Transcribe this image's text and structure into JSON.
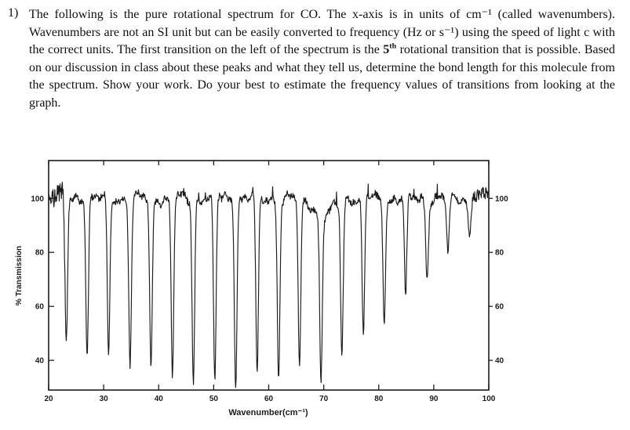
{
  "problem": {
    "number": "1)",
    "text_before": "The following is the pure rotational spectrum for CO.  The x-axis is in units of cm⁻¹ (called wavenumbers).  Wavenumbers are not an SI unit but can be easily converted to frequency (Hz or s⁻¹) using the speed of light c with the correct units.  The first transition on the left of the spectrum is the ",
    "bold_base": "5",
    "bold_sup": "th",
    "text_after": " rotational transition that is possible. Based on our discussion in class about these peaks and what they tell us, determine the bond length for this molecule from the spectrum.  Show your work. Do your best to estimate the frequency values of transitions from looking at the graph."
  },
  "chart_data": {
    "type": "line",
    "title": "",
    "xlabel": "Wavenumber(cm⁻¹)",
    "ylabel": "% Transmission",
    "xlim": [
      20,
      100
    ],
    "ylim_visible": [
      29,
      114
    ],
    "x_ticks": [
      20,
      30,
      40,
      50,
      60,
      70,
      80,
      90,
      100
    ],
    "y_ticks": [
      40,
      60,
      80,
      100
    ],
    "baseline_transmission": 100,
    "line_color": "#1c1c1c",
    "broad_feature": {
      "center": 70,
      "depth": 7,
      "width": 2.2
    },
    "absorption_lines": [
      {
        "wavenumber": 23.2,
        "min_transmission": 45
      },
      {
        "wavenumber": 27.0,
        "min_transmission": 43
      },
      {
        "wavenumber": 30.9,
        "min_transmission": 41
      },
      {
        "wavenumber": 34.8,
        "min_transmission": 38
      },
      {
        "wavenumber": 38.6,
        "min_transmission": 36
      },
      {
        "wavenumber": 42.5,
        "min_transmission": 34
      },
      {
        "wavenumber": 46.3,
        "min_transmission": 33
      },
      {
        "wavenumber": 50.2,
        "min_transmission": 32
      },
      {
        "wavenumber": 54.0,
        "min_transmission": 32
      },
      {
        "wavenumber": 57.9,
        "min_transmission": 33
      },
      {
        "wavenumber": 61.8,
        "min_transmission": 34
      },
      {
        "wavenumber": 65.6,
        "min_transmission": 36
      },
      {
        "wavenumber": 69.5,
        "min_transmission": 39
      },
      {
        "wavenumber": 73.3,
        "min_transmission": 43
      },
      {
        "wavenumber": 77.2,
        "min_transmission": 49
      },
      {
        "wavenumber": 81.0,
        "min_transmission": 56
      },
      {
        "wavenumber": 84.9,
        "min_transmission": 63
      },
      {
        "wavenumber": 88.8,
        "min_transmission": 71
      },
      {
        "wavenumber": 92.6,
        "min_transmission": 79
      },
      {
        "wavenumber": 96.5,
        "min_transmission": 86
      }
    ]
  }
}
